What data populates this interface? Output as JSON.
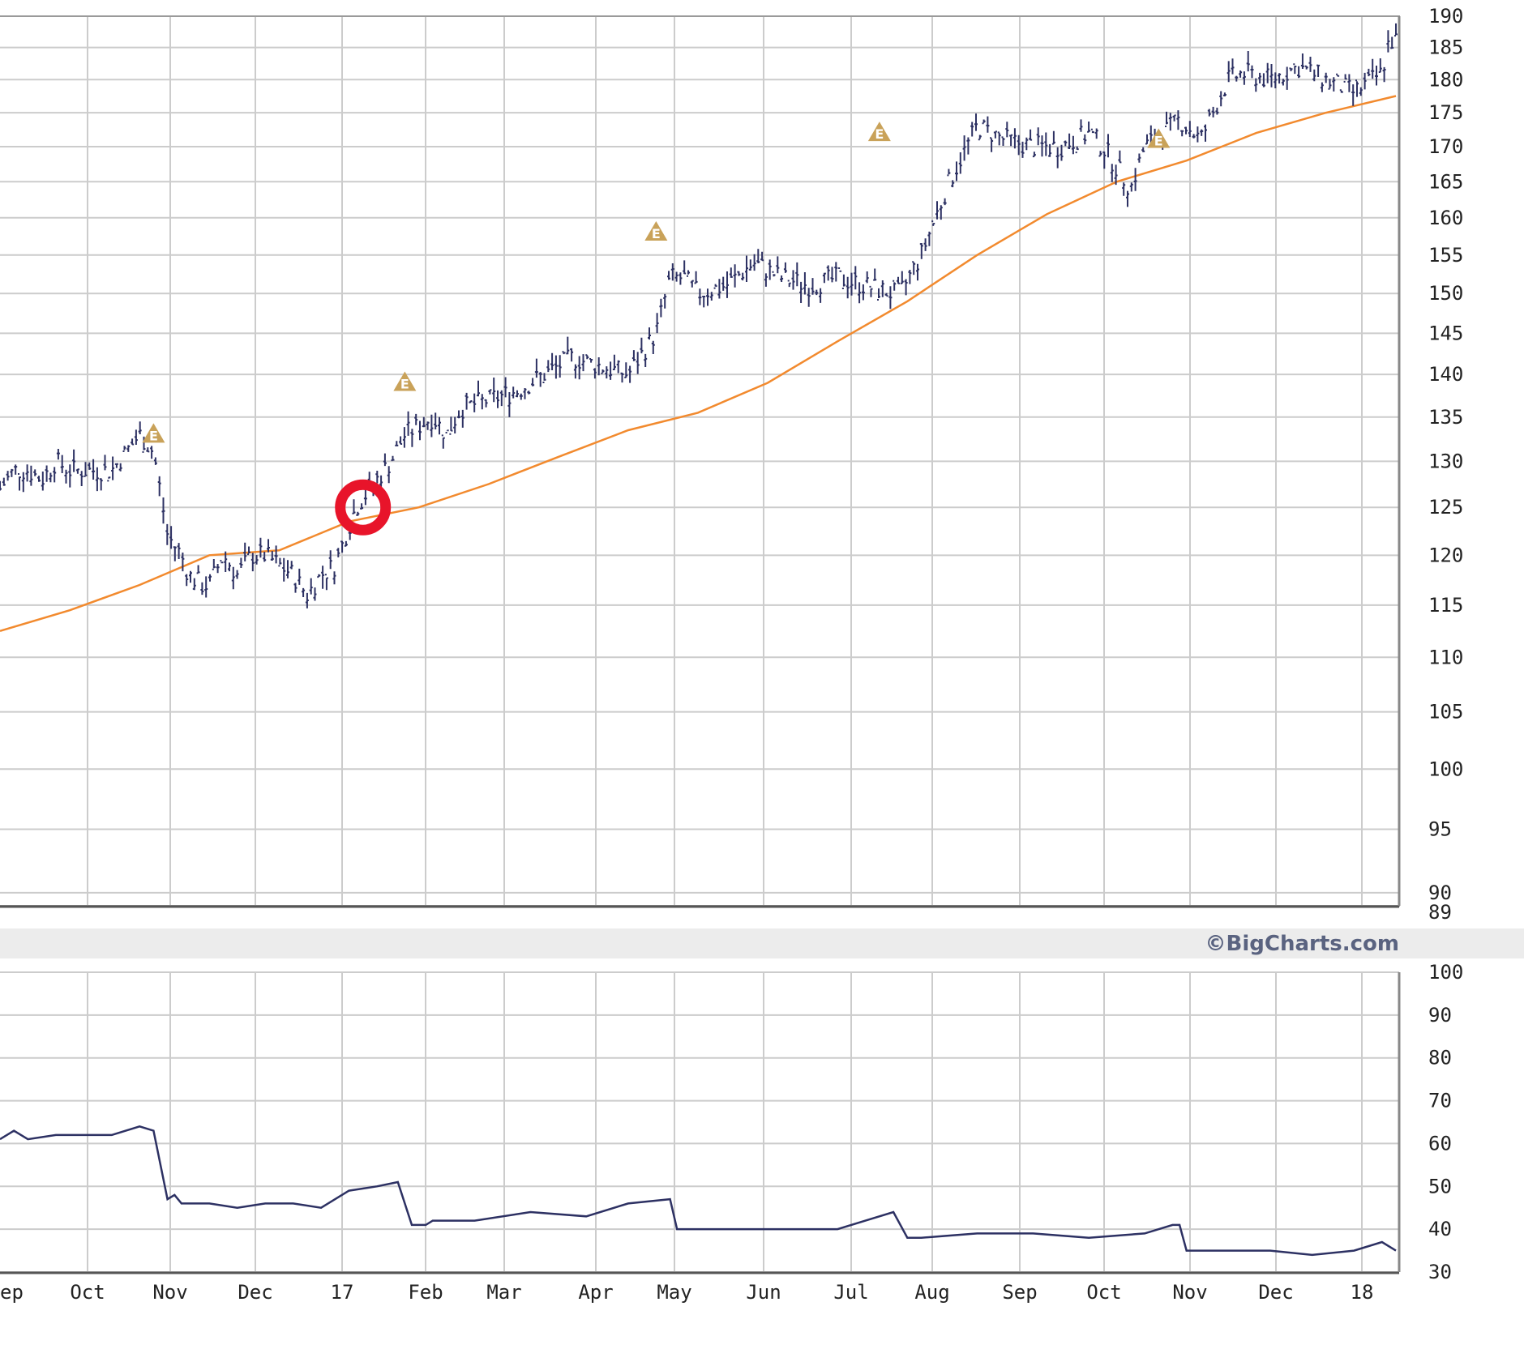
{
  "brand": "©BigCharts.com",
  "colors": {
    "price_bars": "#2d3163",
    "moving_average": "#f28a2e",
    "indicator_line": "#2d3163",
    "earnings_marker": "#c9a259",
    "highlight_circle": "#e8142a",
    "grid": "#cccccc",
    "band": "#ececec"
  },
  "chart_data": [
    {
      "type": "line",
      "name": "price",
      "log_scale": true,
      "ylim": [
        89,
        190
      ],
      "y_ticks": [
        190,
        185,
        180,
        175,
        170,
        165,
        160,
        155,
        150,
        145,
        140,
        135,
        130,
        125,
        120,
        115,
        110,
        105,
        100,
        95,
        90,
        89
      ],
      "x_ticks": [
        "ep",
        "Oct",
        "Nov",
        "Dec",
        "17",
        "Feb",
        "Mar",
        "Apr",
        "May",
        "Jun",
        "Jul",
        "Aug",
        "Sep",
        "Oct",
        "Nov",
        "Dec",
        "18"
      ],
      "grid": true,
      "series": [
        {
          "style": "ohlc-bars",
          "x": [
            0.0,
            0.01,
            0.02,
            0.03,
            0.04,
            0.05,
            0.06,
            0.07,
            0.08,
            0.09,
            0.1,
            0.11,
            0.12,
            0.13,
            0.135,
            0.145,
            0.15,
            0.16,
            0.17,
            0.18,
            0.19,
            0.2,
            0.21,
            0.22,
            0.23,
            0.24,
            0.245,
            0.255,
            0.26,
            0.27,
            0.28,
            0.29,
            0.3,
            0.31,
            0.32,
            0.33,
            0.35,
            0.37,
            0.39,
            0.41,
            0.43,
            0.45,
            0.47,
            0.48,
            0.49,
            0.5,
            0.52,
            0.54,
            0.56,
            0.58,
            0.6,
            0.62,
            0.64,
            0.645,
            0.66,
            0.68,
            0.7,
            0.72,
            0.74,
            0.76,
            0.78,
            0.79,
            0.81,
            0.82,
            0.84,
            0.845,
            0.86,
            0.88,
            0.89,
            0.91,
            0.93,
            0.96,
            0.97,
            0.99,
            0.995
          ],
          "y": [
            127,
            129,
            129,
            128,
            130,
            129,
            129,
            129,
            129,
            131,
            133,
            131,
            122,
            120,
            118,
            117,
            117,
            120,
            118,
            120,
            120,
            119,
            118,
            116,
            118,
            119,
            121,
            125,
            126,
            128,
            130,
            133,
            134,
            135,
            133,
            136,
            137,
            138,
            140,
            142,
            141,
            140,
            145,
            152,
            152,
            150,
            151,
            154,
            152,
            151,
            152,
            151,
            150,
            150,
            155,
            165,
            173,
            171,
            170,
            170,
            172,
            170,
            164,
            170,
            173,
            174,
            171,
            180,
            181,
            180,
            182,
            179,
            178,
            181,
            186
          ]
        },
        {
          "style": "line",
          "x": [
            0.0,
            0.05,
            0.1,
            0.15,
            0.2,
            0.25,
            0.3,
            0.35,
            0.4,
            0.45,
            0.5,
            0.55,
            0.6,
            0.65,
            0.7,
            0.75,
            0.8,
            0.85,
            0.9,
            0.95,
            1.0
          ],
          "y": [
            112.5,
            114.5,
            117,
            120,
            120.5,
            123.5,
            125,
            127.5,
            130.5,
            133.5,
            135.5,
            139,
            144,
            149,
            155,
            160.5,
            165,
            168,
            172,
            175,
            177.5
          ]
        }
      ],
      "markers": [
        {
          "label": "E",
          "x": 0.11,
          "y": 133
        },
        {
          "label": "E",
          "x": 0.29,
          "y": 139
        },
        {
          "label": "E",
          "x": 0.47,
          "y": 158
        },
        {
          "label": "E",
          "x": 0.63,
          "y": 172
        },
        {
          "label": "E",
          "x": 0.83,
          "y": 171
        }
      ],
      "highlight": {
        "x": 0.26,
        "y": 125
      }
    },
    {
      "type": "line",
      "name": "indicator",
      "ylim": [
        30,
        100
      ],
      "y_ticks": [
        100,
        90,
        80,
        70,
        60,
        50,
        40,
        30
      ],
      "grid": true,
      "series": [
        {
          "style": "line",
          "x": [
            0.0,
            0.01,
            0.02,
            0.04,
            0.06,
            0.08,
            0.1,
            0.11,
            0.12,
            0.125,
            0.13,
            0.15,
            0.17,
            0.19,
            0.21,
            0.23,
            0.25,
            0.27,
            0.285,
            0.295,
            0.305,
            0.31,
            0.34,
            0.38,
            0.42,
            0.45,
            0.48,
            0.485,
            0.49,
            0.52,
            0.56,
            0.6,
            0.62,
            0.64,
            0.65,
            0.655,
            0.66,
            0.7,
            0.74,
            0.78,
            0.82,
            0.84,
            0.845,
            0.85,
            0.88,
            0.91,
            0.94,
            0.97,
            0.99,
            1.0
          ],
          "y": [
            61,
            63,
            61,
            62,
            62,
            62,
            64,
            63,
            47,
            48,
            46,
            46,
            45,
            46,
            46,
            45,
            49,
            50,
            51,
            41,
            41,
            42,
            42,
            44,
            43,
            46,
            47,
            40,
            40,
            40,
            40,
            40,
            42,
            44,
            38,
            38,
            38,
            39,
            39,
            38,
            39,
            41,
            41,
            35,
            35,
            35,
            34,
            35,
            37,
            35
          ]
        }
      ]
    }
  ]
}
